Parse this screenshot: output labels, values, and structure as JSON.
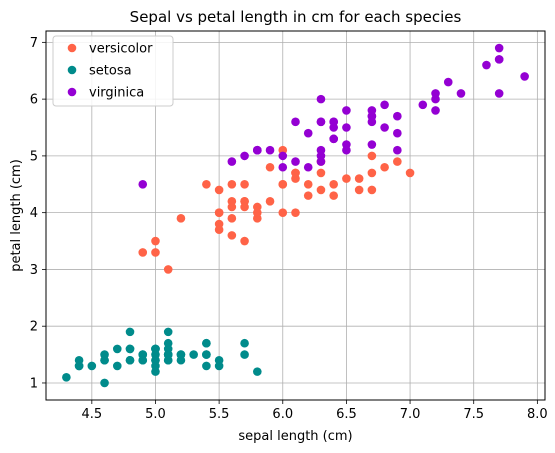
{
  "chart_data": {
    "type": "scatter",
    "title": "Sepal vs petal length in cm for each species",
    "xlabel": "sepal length (cm)",
    "ylabel": "petal length (cm)",
    "xlim": [
      4.14,
      8.06
    ],
    "ylim": [
      0.7,
      7.2
    ],
    "xticks": [
      "4.5",
      "5.0",
      "5.5",
      "6.0",
      "6.5",
      "7.0",
      "7.5",
      "8.0"
    ],
    "yticks": [
      "1",
      "2",
      "3",
      "4",
      "5",
      "6",
      "7"
    ],
    "grid": true,
    "legend_position": "top-left",
    "series": [
      {
        "name": "versicolor",
        "color": "#ff6347",
        "points": [
          [
            7.0,
            4.7
          ],
          [
            6.4,
            4.5
          ],
          [
            6.9,
            4.9
          ],
          [
            5.5,
            4.0
          ],
          [
            6.5,
            4.6
          ],
          [
            5.7,
            4.5
          ],
          [
            6.3,
            4.7
          ],
          [
            4.9,
            3.3
          ],
          [
            6.6,
            4.6
          ],
          [
            5.2,
            3.9
          ],
          [
            5.0,
            3.5
          ],
          [
            5.9,
            4.2
          ],
          [
            6.0,
            4.0
          ],
          [
            6.1,
            4.7
          ],
          [
            5.6,
            3.6
          ],
          [
            6.7,
            4.4
          ],
          [
            5.6,
            4.5
          ],
          [
            5.8,
            4.1
          ],
          [
            6.2,
            4.5
          ],
          [
            5.6,
            3.9
          ],
          [
            5.9,
            4.8
          ],
          [
            6.1,
            4.0
          ],
          [
            6.3,
            4.9
          ],
          [
            6.1,
            4.7
          ],
          [
            6.4,
            4.3
          ],
          [
            6.6,
            4.4
          ],
          [
            6.8,
            4.8
          ],
          [
            6.7,
            5.0
          ],
          [
            6.0,
            4.5
          ],
          [
            5.7,
            3.5
          ],
          [
            5.5,
            3.8
          ],
          [
            5.5,
            3.7
          ],
          [
            5.8,
            3.9
          ],
          [
            6.0,
            5.1
          ],
          [
            5.4,
            4.5
          ],
          [
            6.0,
            4.5
          ],
          [
            6.7,
            4.7
          ],
          [
            6.3,
            4.4
          ],
          [
            5.6,
            4.1
          ],
          [
            5.5,
            4.0
          ],
          [
            5.5,
            4.4
          ],
          [
            6.1,
            4.6
          ],
          [
            5.8,
            4.0
          ],
          [
            5.0,
            3.3
          ],
          [
            5.6,
            4.2
          ],
          [
            5.7,
            4.2
          ],
          [
            5.7,
            4.2
          ],
          [
            6.2,
            4.3
          ],
          [
            5.1,
            3.0
          ],
          [
            5.7,
            4.1
          ]
        ]
      },
      {
        "name": "setosa",
        "color": "#008b8b",
        "points": [
          [
            5.1,
            1.4
          ],
          [
            4.9,
            1.4
          ],
          [
            4.7,
            1.3
          ],
          [
            4.6,
            1.5
          ],
          [
            5.0,
            1.4
          ],
          [
            5.4,
            1.7
          ],
          [
            4.6,
            1.4
          ],
          [
            5.0,
            1.5
          ],
          [
            4.4,
            1.4
          ],
          [
            4.9,
            1.5
          ],
          [
            5.4,
            1.5
          ],
          [
            4.8,
            1.6
          ],
          [
            4.8,
            1.4
          ],
          [
            4.3,
            1.1
          ],
          [
            5.8,
            1.2
          ],
          [
            5.7,
            1.5
          ],
          [
            5.4,
            1.3
          ],
          [
            5.1,
            1.4
          ],
          [
            5.7,
            1.7
          ],
          [
            5.1,
            1.5
          ],
          [
            5.4,
            1.7
          ],
          [
            5.1,
            1.5
          ],
          [
            4.6,
            1.0
          ],
          [
            5.1,
            1.7
          ],
          [
            4.8,
            1.9
          ],
          [
            5.0,
            1.6
          ],
          [
            5.0,
            1.6
          ],
          [
            5.2,
            1.5
          ],
          [
            5.2,
            1.4
          ],
          [
            4.7,
            1.6
          ],
          [
            4.8,
            1.6
          ],
          [
            5.4,
            1.5
          ],
          [
            5.2,
            1.5
          ],
          [
            5.5,
            1.4
          ],
          [
            4.9,
            1.5
          ],
          [
            5.0,
            1.2
          ],
          [
            5.5,
            1.3
          ],
          [
            4.9,
            1.4
          ],
          [
            4.4,
            1.3
          ],
          [
            5.1,
            1.5
          ],
          [
            5.0,
            1.3
          ],
          [
            4.5,
            1.3
          ],
          [
            4.4,
            1.3
          ],
          [
            5.0,
            1.6
          ],
          [
            5.1,
            1.9
          ],
          [
            4.8,
            1.4
          ],
          [
            5.1,
            1.6
          ],
          [
            4.6,
            1.4
          ],
          [
            5.3,
            1.5
          ],
          [
            5.0,
            1.4
          ]
        ]
      },
      {
        "name": "virginica",
        "color": "#9400d3",
        "points": [
          [
            6.3,
            6.0
          ],
          [
            5.8,
            5.1
          ],
          [
            7.1,
            5.9
          ],
          [
            6.3,
            5.6
          ],
          [
            6.5,
            5.8
          ],
          [
            7.6,
            6.6
          ],
          [
            4.9,
            4.5
          ],
          [
            7.3,
            6.3
          ],
          [
            6.7,
            5.8
          ],
          [
            7.2,
            6.1
          ],
          [
            6.5,
            5.1
          ],
          [
            6.4,
            5.3
          ],
          [
            6.8,
            5.5
          ],
          [
            5.7,
            5.0
          ],
          [
            5.8,
            5.1
          ],
          [
            6.4,
            5.3
          ],
          [
            6.5,
            5.5
          ],
          [
            7.7,
            6.7
          ],
          [
            7.7,
            6.9
          ],
          [
            6.0,
            5.0
          ],
          [
            6.9,
            5.7
          ],
          [
            5.6,
            4.9
          ],
          [
            7.7,
            6.7
          ],
          [
            6.3,
            4.9
          ],
          [
            6.7,
            5.7
          ],
          [
            7.2,
            6.0
          ],
          [
            6.2,
            4.8
          ],
          [
            6.1,
            4.9
          ],
          [
            6.4,
            5.6
          ],
          [
            7.2,
            5.8
          ],
          [
            7.4,
            6.1
          ],
          [
            7.9,
            6.4
          ],
          [
            6.4,
            5.6
          ],
          [
            6.3,
            5.1
          ],
          [
            6.1,
            5.6
          ],
          [
            7.7,
            6.1
          ],
          [
            6.3,
            5.6
          ],
          [
            6.4,
            5.5
          ],
          [
            6.0,
            4.8
          ],
          [
            6.9,
            5.4
          ],
          [
            6.7,
            5.6
          ],
          [
            6.9,
            5.1
          ],
          [
            5.8,
            5.1
          ],
          [
            6.8,
            5.9
          ],
          [
            6.7,
            5.7
          ],
          [
            6.7,
            5.2
          ],
          [
            6.3,
            5.0
          ],
          [
            6.5,
            5.2
          ],
          [
            6.2,
            5.4
          ],
          [
            5.9,
            5.1
          ]
        ]
      }
    ]
  }
}
